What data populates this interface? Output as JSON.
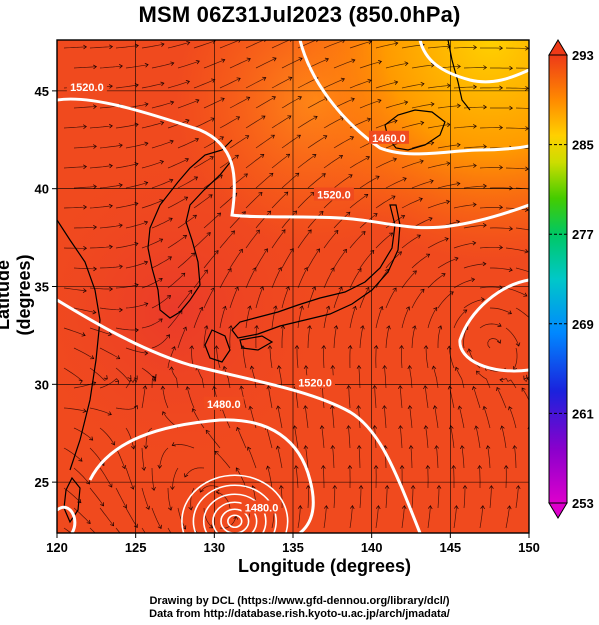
{
  "title": "MSM 06Z31Jul2023 (850.0hPa)",
  "xlabel": "Longitude (degrees)",
  "ylabel": "Latitude  (degrees)",
  "credits": {
    "line1": "Drawing by DCL (https://www.gfd-dennou.org/library/dcl/)",
    "line2": "Data from http://database.rish.kyoto-u.ac.jp/arch/jmadata/"
  },
  "map": {
    "lon_range": [
      120,
      150
    ],
    "lat_range": [
      22.4,
      47.6
    ],
    "x_ticks": [
      "120",
      "125",
      "130",
      "135",
      "140",
      "145",
      "150"
    ],
    "y_ticks": [
      "25",
      "30",
      "35",
      "40",
      "45"
    ],
    "field": "temperature (K) with streamlines and geopotential height contours",
    "background_color": "#f04a1e",
    "contour_color": "#ffffff",
    "contour_labels": [
      {
        "text": "1520.0",
        "lon": 121.9,
        "lat": 45.1
      },
      {
        "text": "1460.0",
        "lon": 141.1,
        "lat": 42.5
      },
      {
        "text": "1520.0",
        "lon": 137.6,
        "lat": 39.6
      },
      {
        "text": "1520.0",
        "lon": 136.4,
        "lat": 30.0
      },
      {
        "text": "1480.0",
        "lon": 130.6,
        "lat": 28.9
      },
      {
        "text": "1480.0",
        "lon": 133.0,
        "lat": 23.6
      }
    ]
  },
  "colorbar": {
    "min": 253,
    "max": 293,
    "tick_labels": [
      "293",
      "285",
      "277",
      "269",
      "261",
      "253"
    ],
    "colors": [
      "#cc00cc",
      "#8800cc",
      "#2222dd",
      "#00aaff",
      "#00c8c8",
      "#00c86e",
      "#44cc00",
      "#cce000",
      "#ffd000",
      "#ff9a00",
      "#ff5a14",
      "#e02010"
    ]
  }
}
